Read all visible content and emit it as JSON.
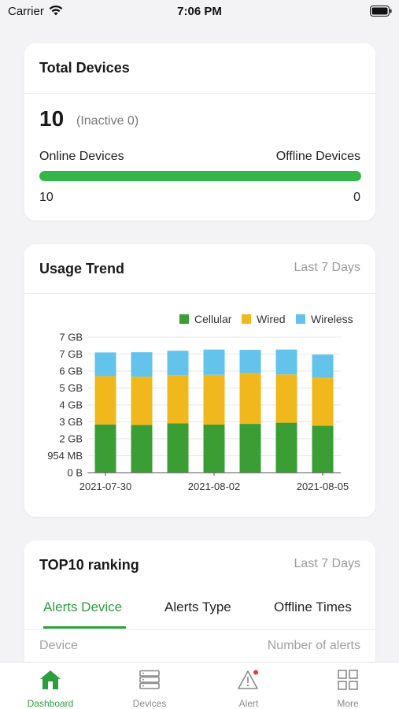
{
  "status_bar": {
    "carrier": "Carrier",
    "time": "7:06 PM"
  },
  "total_devices": {
    "title": "Total Devices",
    "total": "10",
    "inactive": "(Inactive 0)",
    "online_label": "Online Devices",
    "offline_label": "Offline Devices",
    "online_count": "10",
    "offline_count": "0",
    "online_fraction": 1.0
  },
  "usage_trend": {
    "title": "Usage Trend",
    "period": "Last 7 Days"
  },
  "chart_data": {
    "type": "bar",
    "stacked": true,
    "categories": [
      "2021-07-30",
      "2021-07-31",
      "2021-08-01",
      "2021-08-02",
      "2021-08-03",
      "2021-08-04",
      "2021-08-05"
    ],
    "x_tick_labels": [
      "2021-07-30",
      "2021-08-02",
      "2021-08-05"
    ],
    "y_tick_labels": [
      "0 B",
      "954 MB",
      "2 GB",
      "3 GB",
      "4 GB",
      "5 GB",
      "6 GB",
      "7 GB",
      "7 GB"
    ],
    "ylim_gb": [
      0,
      8
    ],
    "y_unit": "GB",
    "series": [
      {
        "name": "Cellular",
        "color": "#3a9e34",
        "values": [
          2.85,
          2.82,
          2.91,
          2.84,
          2.88,
          2.95,
          2.77
        ]
      },
      {
        "name": "Wired",
        "color": "#f0b81c",
        "values": [
          2.85,
          2.85,
          2.85,
          2.94,
          3.0,
          2.85,
          2.83
        ]
      },
      {
        "name": "Wireless",
        "color": "#63c3ea",
        "values": [
          1.4,
          1.44,
          1.44,
          1.49,
          1.37,
          1.47,
          1.37
        ]
      }
    ],
    "legend_position": "top-right",
    "grid": true
  },
  "ranking": {
    "title": "TOP10 ranking",
    "period": "Last 7 Days",
    "tabs": [
      "Alerts Device",
      "Alerts Type",
      "Offline Times"
    ],
    "columns": [
      "Device",
      "Number of alerts"
    ]
  },
  "tabbar": {
    "items": [
      {
        "label": "Dashboard",
        "icon": "home-icon"
      },
      {
        "label": "Devices",
        "icon": "server-icon"
      },
      {
        "label": "Alert",
        "icon": "alert-icon"
      },
      {
        "label": "More",
        "icon": "grid-icon"
      }
    ]
  },
  "colors": {
    "accent": "#2e9d3f",
    "progress": "#33b54a",
    "alert_dot": "#e53935"
  }
}
